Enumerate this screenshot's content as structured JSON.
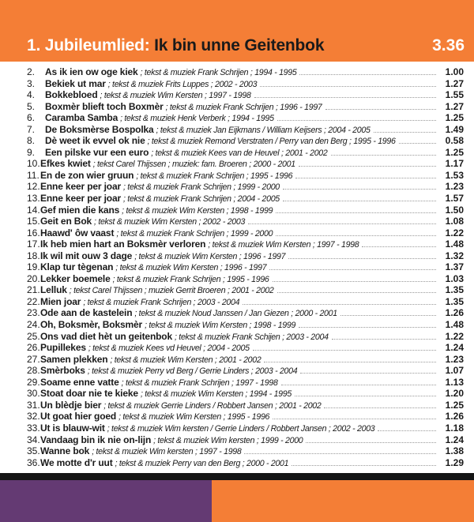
{
  "colors": {
    "orange": "#f47e36",
    "purple": "#643a73",
    "black": "#151515"
  },
  "header": {
    "prefix": "1. Jubileumlied:",
    "title": "Ik bin unne Geitenbok",
    "duration": "3.36"
  },
  "tracks": [
    {
      "num": "2.",
      "title": "As ik ien ow oge kiek",
      "credits": "; tekst & muziek Frank Schrijen ; 1994 - 1995",
      "duration": "1.00"
    },
    {
      "num": "3.",
      "title": "Bekiek ut mar",
      "credits": "; tekst & muziek Frits Luppes ; 2002 - 2003",
      "duration": "1.27"
    },
    {
      "num": "4.",
      "title": "Bokkebloed",
      "credits": "; tekst & muziek  Wim Kersten ; 1997 - 1998",
      "duration": "1.55"
    },
    {
      "num": "5.",
      "title": "Boxmèr blieft toch Boxmèr",
      "credits": "; tekst & muziek Frank Schrijen ; 1996 - 1997",
      "duration": "1.27"
    },
    {
      "num": "6.",
      "title": "Caramba Samba",
      "credits": "; tekst & muziek Henk Verberk ; 1994 - 1995",
      "duration": "1.25"
    },
    {
      "num": "7.",
      "title": "De Boksmèrse Bospolka",
      "credits": "; tekst & muziek Jan Eijkmans / William Keijsers ; 2004 - 2005",
      "duration": "1.49"
    },
    {
      "num": "8.",
      "title": "Dè weet ik evvel ok nie",
      "credits": "; tekst & muziek Remond Verstraten / Perry van den Berg ; 1995 - 1996",
      "duration": "0.58"
    },
    {
      "num": "9.",
      "title": "Een pilske vur een euro",
      "credits": "; tekst & muziek Kees van de Heuvel ; 2001 - 2002",
      "duration": "1.25"
    },
    {
      "num": "10.",
      "title": "Efkes kwiet",
      "credits": "; tekst Carel Thijssen ; muziek: fam. Broeren ; 2000 - 2001",
      "duration": "1.17"
    },
    {
      "num": "11.",
      "title": "En de zon wier gruun",
      "credits": "; tekst & muziek Frank Schrijen ; 1995 - 1996",
      "duration": "1.53"
    },
    {
      "num": "12.",
      "title": "Enne keer per joar",
      "credits": "; tekst & muziek Frank Schrijen ; 1999 - 2000",
      "duration": "1.23"
    },
    {
      "num": "13.",
      "title": "Enne keer per joar",
      "credits": "; tekst & muziek Frank Schrijen ;  2004 - 2005",
      "duration": "1.57"
    },
    {
      "num": "14.",
      "title": "Gef mien die kans",
      "credits": "; tekst & muziek Wim Kersten ; 1998 - 1999",
      "duration": "1.50"
    },
    {
      "num": "15.",
      "title": "Geit en Bok",
      "credits": "; tekst & muziek Wim Kersten ; 2002 - 2003",
      "duration": "1.08"
    },
    {
      "num": "16.",
      "title": "Haawd' ôw vaast",
      "credits": "; tekst & muziek Frank Schrijen ; 1999 - 2000",
      "duration": "1.22"
    },
    {
      "num": "17.",
      "title": "Ik heb mien hart an Boksmèr verloren",
      "credits": "; tekst & muziek Wim Kersten ; 1997 - 1998",
      "duration": "1.48"
    },
    {
      "num": "18.",
      "title": "Ik wil mit ouw 3 dage",
      "credits": "; tekst & muziek Wim Kersten ; 1996 - 1997",
      "duration": "1.32"
    },
    {
      "num": "19.",
      "title": "Klap tur tègenan",
      "credits": "; tekst & muziek Wim Kersten ; 1996 - 1997",
      "duration": "1.37"
    },
    {
      "num": "20.",
      "title": "Lekker boemele",
      "credits": "; tekst & muziek Frank Schrijen ; 1995 - 1996",
      "duration": "1.03"
    },
    {
      "num": "21.",
      "title": "Lelluk",
      "credits": "; tekst Carel Thijssen ; muziek Gerrit Broeren ; 2001 - 2002",
      "duration": "1.35"
    },
    {
      "num": "22.",
      "title": "Mien joar",
      "credits": "; tekst & muziek Frank Schrijen ; 2003 - 2004",
      "duration": "1.35"
    },
    {
      "num": "23.",
      "title": "Ode aan de kastelein",
      "credits": "; tekst & muziek Noud Janssen / Jan Giezen ; 2000 - 2001",
      "duration": "1.26"
    },
    {
      "num": "24.",
      "title": "Oh, Boksmèr, Boksmèr",
      "credits": "; tekst & muziek Wim Kersten ; 1998 - 1999",
      "duration": "1.48"
    },
    {
      "num": "25.",
      "title": "Ons vad diet hèt un geitenbok",
      "credits": "; tekst & muziek Frank Schijen ; 2003 - 2004",
      "duration": "1.22"
    },
    {
      "num": "26.",
      "title": "Pupillekes",
      "credits": "; tekst & muziek Kees vd Heuvel ; 2004 - 2005",
      "duration": "1.24"
    },
    {
      "num": "27.",
      "title": "Samen plekken",
      "credits": "; tekst & muziek Wim Kersten ; 2001 - 2002",
      "duration": "1.23"
    },
    {
      "num": "28.",
      "title": "Smèrboks",
      "credits": "; tekst & muziek Perry vd Berg / Gerrie Linders ; 2003 - 2004",
      "duration": "1.07"
    },
    {
      "num": "29.",
      "title": "Soame enne vatte",
      "credits": "; tekst & muziek Frank Schrijen ; 1997 - 1998",
      "duration": "1.13"
    },
    {
      "num": "30.",
      "title": "Stoat doar nie te kieke",
      "credits": "; tekst & muziek Wim Kersten ; 1994 - 1995",
      "duration": "1.20"
    },
    {
      "num": "31.",
      "title": "Un blèdje bier",
      "credits": "; tekst & muziek Gerrie Linders / Robbert Jansen ; 2001 - 2002",
      "duration": "1.25"
    },
    {
      "num": "32.",
      "title": "Ut goat hier goed",
      "credits": "; tekst & muziek Wim Kersten ; 1995 - 1996",
      "duration": "1.26"
    },
    {
      "num": "33.",
      "title": "Ut is blauw-wit",
      "credits": "; tekst & muziek Wim kersten / Gerrie Linders / Robbert Jansen ; 2002 - 2003",
      "duration": "1.18"
    },
    {
      "num": "34.",
      "title": "Vandaag bin ik nie on-lijn",
      "credits": "; tekst & muziek Wim kersten ;  1999 - 2000",
      "duration": "1.24"
    },
    {
      "num": "35.",
      "title": "Wanne bok",
      "credits": "; tekst & muziek Wim kersten ; 1997 - 1998",
      "duration": "1.38"
    },
    {
      "num": "36.",
      "title": "We motte d'r uut",
      "credits": "; tekst & muziek Perry van den Berg ; 2000 - 2001",
      "duration": "1.29"
    }
  ]
}
